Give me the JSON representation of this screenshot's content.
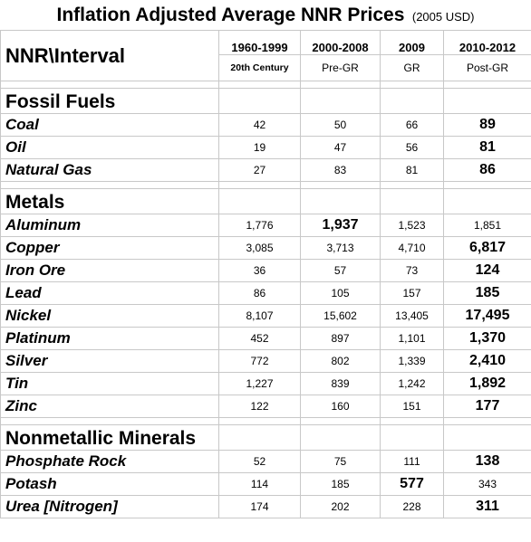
{
  "title": "Inflation Adjusted Average NNR Prices",
  "unit_note": "(2005 USD)",
  "header": {
    "row_label": "NNR\\Interval",
    "columns": [
      {
        "interval": "1960-1999",
        "period": "20th Century"
      },
      {
        "interval": "2000-2008",
        "period": "Pre-GR"
      },
      {
        "interval": "2009",
        "period": "GR"
      },
      {
        "interval": "2010-2012",
        "period": "Post-GR"
      }
    ]
  },
  "sections": [
    {
      "name": "Fossil Fuels",
      "rows": [
        {
          "label": "Coal",
          "values": [
            "42",
            "50",
            "66",
            "89"
          ],
          "bold": [
            false,
            false,
            false,
            true
          ]
        },
        {
          "label": "Oil",
          "values": [
            "19",
            "47",
            "56",
            "81"
          ],
          "bold": [
            false,
            false,
            false,
            true
          ]
        },
        {
          "label": "Natural Gas",
          "values": [
            "27",
            "83",
            "81",
            "86"
          ],
          "bold": [
            false,
            false,
            false,
            true
          ]
        }
      ]
    },
    {
      "name": "Metals",
      "rows": [
        {
          "label": "Aluminum",
          "values": [
            "1,776",
            "1,937",
            "1,523",
            "1,851"
          ],
          "bold": [
            false,
            true,
            false,
            false
          ]
        },
        {
          "label": "Copper",
          "values": [
            "3,085",
            "3,713",
            "4,710",
            "6,817"
          ],
          "bold": [
            false,
            false,
            false,
            true
          ]
        },
        {
          "label": "Iron Ore",
          "values": [
            "36",
            "57",
            "73",
            "124"
          ],
          "bold": [
            false,
            false,
            false,
            true
          ]
        },
        {
          "label": "Lead",
          "values": [
            "86",
            "105",
            "157",
            "185"
          ],
          "bold": [
            false,
            false,
            false,
            true
          ]
        },
        {
          "label": "Nickel",
          "values": [
            "8,107",
            "15,602",
            "13,405",
            "17,495"
          ],
          "bold": [
            false,
            false,
            false,
            true
          ]
        },
        {
          "label": "Platinum",
          "values": [
            "452",
            "897",
            "1,101",
            "1,370"
          ],
          "bold": [
            false,
            false,
            false,
            true
          ]
        },
        {
          "label": "Silver",
          "values": [
            "772",
            "802",
            "1,339",
            "2,410"
          ],
          "bold": [
            false,
            false,
            false,
            true
          ]
        },
        {
          "label": "Tin",
          "values": [
            "1,227",
            "839",
            "1,242",
            "1,892"
          ],
          "bold": [
            false,
            false,
            false,
            true
          ]
        },
        {
          "label": "Zinc",
          "values": [
            "122",
            "160",
            "151",
            "177"
          ],
          "bold": [
            false,
            false,
            false,
            true
          ]
        }
      ]
    },
    {
      "name": "Nonmetallic Minerals",
      "rows": [
        {
          "label": "Phosphate Rock",
          "values": [
            "52",
            "75",
            "111",
            "138"
          ],
          "bold": [
            false,
            false,
            false,
            true
          ]
        },
        {
          "label": "Potash",
          "values": [
            "114",
            "185",
            "577",
            "343"
          ],
          "bold": [
            false,
            false,
            true,
            false
          ]
        },
        {
          "label": "Urea [Nitrogen]",
          "values": [
            "174",
            "202",
            "228",
            "311"
          ],
          "bold": [
            false,
            false,
            false,
            true
          ]
        }
      ]
    }
  ]
}
